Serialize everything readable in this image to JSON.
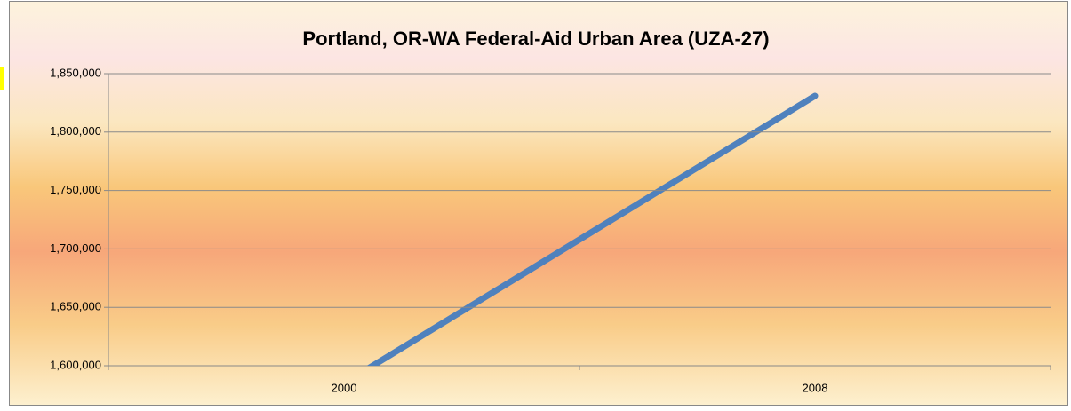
{
  "chart_data": {
    "type": "line",
    "title": "Portland, OR-WA Federal-Aid Urban Area (UZA-27)",
    "categories": [
      "2000",
      "2008"
    ],
    "series": [
      {
        "color": "#4f81bd",
        "values": [
          1585000,
          1831000
        ]
      }
    ],
    "ylim": [
      1600000,
      1850000
    ],
    "yticks": [
      {
        "value": 1600000,
        "label": "1,600,000"
      },
      {
        "value": 1650000,
        "label": "1,650,000"
      },
      {
        "value": 1700000,
        "label": "1,700,000"
      },
      {
        "value": 1750000,
        "label": "1,750,000"
      },
      {
        "value": 1800000,
        "label": "1,800,000"
      },
      {
        "value": 1850000,
        "label": "1,850,000"
      }
    ],
    "grid": true
  }
}
